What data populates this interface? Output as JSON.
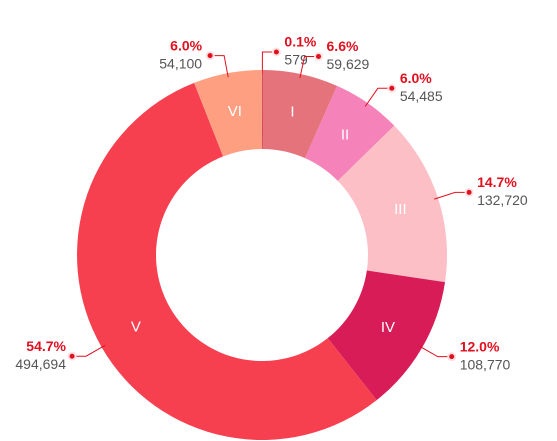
{
  "chart_data": {
    "type": "donut",
    "categories": [
      null,
      "I",
      "II",
      "III",
      "IV",
      "V",
      "VI"
    ],
    "values": [
      579,
      59629,
      54485,
      132720,
      108770,
      494694,
      54100
    ],
    "value_labels": [
      "579",
      "59,629",
      "54,485",
      "132,720",
      "108,770",
      "494,694",
      "54,100"
    ],
    "share_labels": [
      "0.1%",
      "6.6%",
      "6.0%",
      "14.7%",
      "12.0%",
      "54.7%",
      "6.0%"
    ],
    "colors": [
      "#c8192e",
      "#e5737b",
      "#f582b8",
      "#fcbfc6",
      "#d81c57",
      "#f7404f",
      "#ff9f82"
    ]
  }
}
